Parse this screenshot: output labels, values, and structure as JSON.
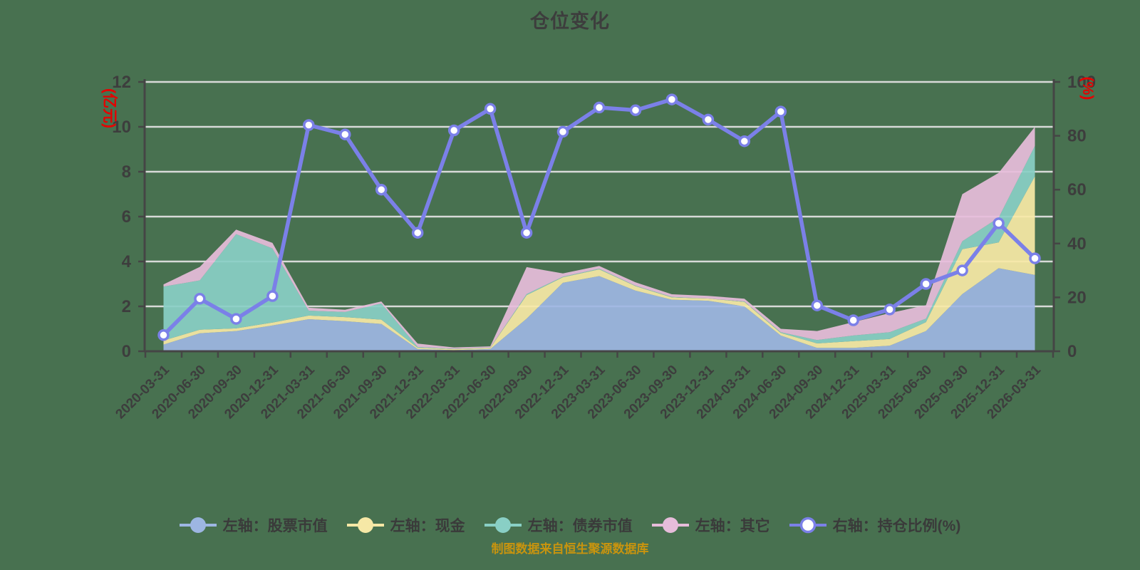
{
  "title": "仓位变化",
  "source_note": "制图数据来自恒生聚源数据库",
  "colors": {
    "background": "#487150",
    "title_text": "#3d3d3d",
    "axis_line": "#454545",
    "tick_text": "#3d3d3d",
    "grid_line": "#d8dad8",
    "axis_name_red": "#e60000",
    "source_text": "#c9940e",
    "marker_fill": "#ffffff"
  },
  "chart_data": {
    "type": "area",
    "subtype": "stacked-area-with-line-combo",
    "grid": true,
    "legend_position": "bottom",
    "categories": [
      "2020-03-31",
      "2020-06-30",
      "2020-09-30",
      "2020-12-31",
      "2021-03-31",
      "2021-06-30",
      "2021-09-30",
      "2021-12-31",
      "2022-03-31",
      "2022-06-30",
      "2022-09-30",
      "2022-12-31",
      "2023-03-31",
      "2023-06-30",
      "2023-09-30",
      "2023-12-31",
      "2024-03-31",
      "2024-06-30",
      "2024-09-30",
      "2024-12-31",
      "2025-03-31",
      "2025-06-30",
      "2025-09-30",
      "2025-12-31",
      "2026-03-31"
    ],
    "left_axis": {
      "name": "(亿元)",
      "min": 0,
      "max": 12,
      "step": 2
    },
    "right_axis": {
      "name": "(%)",
      "min": 0,
      "max": 100,
      "step": 20
    },
    "series": [
      {
        "name": "左轴：股票市值",
        "type": "area",
        "stack": true,
        "axis": "left",
        "color": "#9db6e2",
        "values": [
          0.3,
          0.8,
          0.9,
          1.15,
          1.43,
          1.34,
          1.22,
          0.1,
          0.05,
          0.1,
          1.45,
          3.05,
          3.35,
          2.7,
          2.3,
          2.25,
          2.0,
          0.7,
          0.15,
          0.15,
          0.25,
          0.9,
          2.55,
          3.7,
          3.4
        ]
      },
      {
        "name": "左轴：现金",
        "type": "area",
        "stack": true,
        "axis": "left",
        "color": "#f6e8a6",
        "values": [
          0.18,
          0.16,
          0.12,
          0.13,
          0.16,
          0.18,
          0.19,
          0.06,
          0.05,
          0.05,
          1.05,
          0.25,
          0.3,
          0.2,
          0.1,
          0.1,
          0.2,
          0.12,
          0.2,
          0.3,
          0.3,
          0.4,
          2.0,
          1.15,
          4.4
        ]
      },
      {
        "name": "左轴：债券市值",
        "type": "area",
        "stack": true,
        "axis": "left",
        "color": "#89cfc5",
        "values": [
          2.4,
          2.2,
          4.2,
          3.3,
          0.22,
          0.23,
          0.72,
          0.03,
          0.01,
          0.01,
          0.05,
          0.02,
          0.03,
          0.02,
          0.02,
          0.0,
          0.02,
          0.03,
          0.15,
          0.25,
          0.3,
          0.15,
          0.35,
          1.1,
          1.35
        ]
      },
      {
        "name": "左轴：其它",
        "type": "area",
        "stack": true,
        "axis": "left",
        "color": "#e6bcda",
        "values": [
          0.1,
          0.6,
          0.2,
          0.25,
          0.13,
          0.1,
          0.09,
          0.15,
          0.06,
          0.06,
          1.2,
          0.15,
          0.12,
          0.15,
          0.12,
          0.12,
          0.12,
          0.15,
          0.4,
          0.6,
          0.85,
          0.6,
          2.1,
          2.0,
          0.85
        ]
      },
      {
        "name": "右轴：持仓比例(%)",
        "type": "line",
        "stack": false,
        "axis": "right",
        "color": "#7b80e8",
        "values": [
          6,
          19.5,
          12,
          20.5,
          84,
          80.5,
          60,
          44,
          82,
          90,
          44,
          81.5,
          90.5,
          89.5,
          93.5,
          86,
          78,
          89,
          17,
          11.5,
          15.5,
          25,
          30,
          47.5,
          34.5
        ]
      }
    ]
  }
}
